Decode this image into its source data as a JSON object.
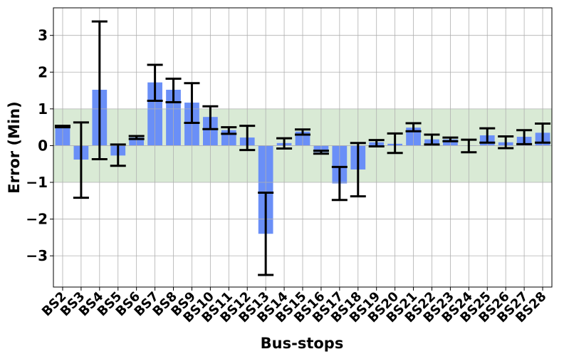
{
  "chart_data": {
    "type": "bar",
    "xlabel": "Bus-stops",
    "ylabel": "Error (Min)",
    "categories": [
      "BS2",
      "BS3",
      "BS4",
      "BS5",
      "BS6",
      "BS7",
      "BS8",
      "BS9",
      "BS10",
      "BS11",
      "BS12",
      "BS13",
      "BS14",
      "BS15",
      "BS16",
      "BS17",
      "BS18",
      "BS19",
      "BS20",
      "BS21",
      "BS22",
      "BS23",
      "BS24",
      "BS25",
      "BS26",
      "BS27",
      "BS28"
    ],
    "values": [
      0.52,
      -0.38,
      1.52,
      -0.27,
      0.22,
      1.72,
      1.52,
      1.17,
      0.78,
      0.42,
      0.22,
      -2.4,
      0.07,
      0.38,
      -0.18,
      -1.03,
      -0.65,
      0.09,
      0.05,
      0.49,
      0.17,
      0.17,
      0.0,
      0.28,
      0.09,
      0.24,
      0.35
    ],
    "error_low": [
      0.5,
      -1.42,
      -0.37,
      -0.55,
      0.18,
      1.22,
      1.18,
      0.62,
      0.45,
      0.32,
      -0.12,
      -3.52,
      -0.08,
      0.3,
      -0.22,
      -1.48,
      -1.38,
      -0.02,
      -0.2,
      0.39,
      0.03,
      0.12,
      -0.18,
      0.08,
      -0.07,
      0.04,
      0.08
    ],
    "error_high": [
      0.54,
      0.63,
      3.38,
      0.03,
      0.26,
      2.2,
      1.82,
      1.7,
      1.07,
      0.5,
      0.54,
      -1.28,
      0.2,
      0.44,
      -0.14,
      -0.58,
      0.07,
      0.15,
      0.33,
      0.61,
      0.3,
      0.22,
      0.16,
      0.47,
      0.25,
      0.42,
      0.6
    ],
    "band": [
      -1,
      1
    ],
    "ylim": [
      -3.85,
      3.75
    ],
    "yticks": [
      -3,
      -2,
      -1,
      0,
      1,
      2,
      3
    ],
    "ytick_labels": [
      "−3",
      "−2",
      "−1",
      "0",
      "1",
      "2",
      "3"
    ],
    "grid": true,
    "colors": {
      "bar": "#6a8ff7",
      "band": "#d9ead5",
      "error": "#000000",
      "grid": "#b0b0b0"
    }
  }
}
